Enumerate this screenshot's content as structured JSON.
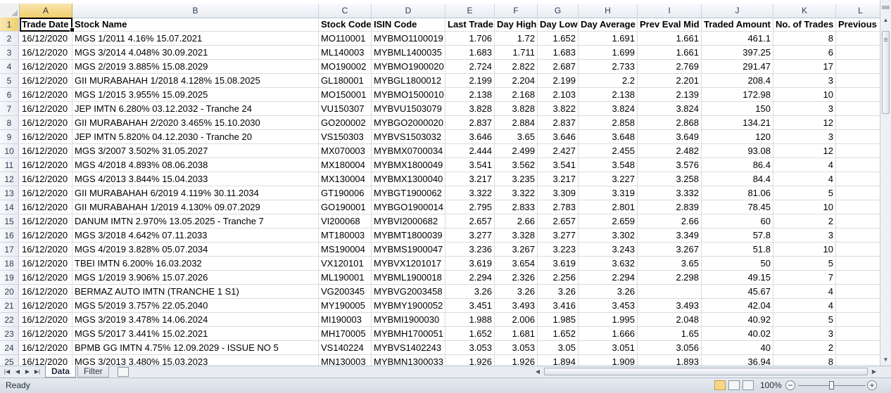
{
  "columns": [
    "A",
    "B",
    "C",
    "D",
    "E",
    "F",
    "G",
    "H",
    "I",
    "J",
    "K",
    "L"
  ],
  "rows": [
    {
      "n": "1",
      "cells": [
        "Trade Date",
        "Stock Name",
        "Stock Code",
        "ISIN Code",
        "Last Trade",
        "Day High",
        "Day Low",
        "Day Average",
        "Prev Eval Mid",
        "Traded Amount",
        "No. of Trades",
        "Previous"
      ]
    },
    {
      "n": "2",
      "cells": [
        "16/12/2020",
        "MGS 1/2011 4.16% 15.07.2021",
        "MO110001",
        "MYBMO1100019",
        "1.706",
        "1.72",
        "1.652",
        "1.691",
        "1.661",
        "461.1",
        "8",
        ""
      ]
    },
    {
      "n": "3",
      "cells": [
        "16/12/2020",
        "MGS 3/2014 4.048% 30.09.2021",
        "ML140003",
        "MYBML1400035",
        "1.683",
        "1.711",
        "1.683",
        "1.699",
        "1.661",
        "397.25",
        "6",
        ""
      ]
    },
    {
      "n": "4",
      "cells": [
        "16/12/2020",
        "MGS 2/2019 3.885% 15.08.2029",
        "MO190002",
        "MYBMO1900020",
        "2.724",
        "2.822",
        "2.687",
        "2.733",
        "2.769",
        "291.47",
        "17",
        ""
      ]
    },
    {
      "n": "5",
      "cells": [
        "16/12/2020",
        "GII MURABAHAH 1/2018 4.128% 15.08.2025",
        "GL180001",
        "MYBGL1800012",
        "2.199",
        "2.204",
        "2.199",
        "2.2",
        "2.201",
        "208.4",
        "3",
        ""
      ]
    },
    {
      "n": "6",
      "cells": [
        "16/12/2020",
        "MGS 1/2015 3.955% 15.09.2025",
        "MO150001",
        "MYBMO1500010",
        "2.138",
        "2.168",
        "2.103",
        "2.138",
        "2.139",
        "172.98",
        "10",
        ""
      ]
    },
    {
      "n": "7",
      "cells": [
        "16/12/2020",
        "JEP IMTN 6.280% 03.12.2032 - Tranche 24",
        "VU150307",
        "MYBVU1503079",
        "3.828",
        "3.828",
        "3.822",
        "3.824",
        "3.824",
        "150",
        "3",
        ""
      ]
    },
    {
      "n": "8",
      "cells": [
        "16/12/2020",
        "GII MURABAHAH 2/2020 3.465% 15.10.2030",
        "GO200002",
        "MYBGO2000020",
        "2.837",
        "2.884",
        "2.837",
        "2.858",
        "2.868",
        "134.21",
        "12",
        ""
      ]
    },
    {
      "n": "9",
      "cells": [
        "16/12/2020",
        "JEP IMTN 5.820% 04.12.2030 - Tranche 20",
        "VS150303",
        "MYBVS1503032",
        "3.646",
        "3.65",
        "3.646",
        "3.648",
        "3.649",
        "120",
        "3",
        ""
      ]
    },
    {
      "n": "10",
      "cells": [
        "16/12/2020",
        "MGS 3/2007 3.502% 31.05.2027",
        "MX070003",
        "MYBMX0700034",
        "2.444",
        "2.499",
        "2.427",
        "2.455",
        "2.482",
        "93.08",
        "12",
        ""
      ]
    },
    {
      "n": "11",
      "cells": [
        "16/12/2020",
        "MGS 4/2018 4.893% 08.06.2038",
        "MX180004",
        "MYBMX1800049",
        "3.541",
        "3.562",
        "3.541",
        "3.548",
        "3.576",
        "86.4",
        "4",
        ""
      ]
    },
    {
      "n": "12",
      "cells": [
        "16/12/2020",
        "MGS 4/2013 3.844% 15.04.2033",
        "MX130004",
        "MYBMX1300040",
        "3.217",
        "3.235",
        "3.217",
        "3.227",
        "3.258",
        "84.4",
        "4",
        ""
      ]
    },
    {
      "n": "13",
      "cells": [
        "16/12/2020",
        "GII MURABAHAH 6/2019 4.119% 30.11.2034",
        "GT190006",
        "MYBGT1900062",
        "3.322",
        "3.322",
        "3.309",
        "3.319",
        "3.332",
        "81.06",
        "5",
        ""
      ]
    },
    {
      "n": "14",
      "cells": [
        "16/12/2020",
        "GII MURABAHAH 1/2019 4.130% 09.07.2029",
        "GO190001",
        "MYBGO1900014",
        "2.795",
        "2.833",
        "2.783",
        "2.801",
        "2.839",
        "78.45",
        "10",
        ""
      ]
    },
    {
      "n": "15",
      "cells": [
        "16/12/2020",
        "DANUM IMTN 2.970% 13.05.2025 - Tranche 7",
        "VI200068",
        "MYBVI2000682",
        "2.657",
        "2.66",
        "2.657",
        "2.659",
        "2.66",
        "60",
        "2",
        ""
      ]
    },
    {
      "n": "16",
      "cells": [
        "16/12/2020",
        "MGS 3/2018 4.642% 07.11.2033",
        "MT180003",
        "MYBMT1800039",
        "3.277",
        "3.328",
        "3.277",
        "3.302",
        "3.349",
        "57.8",
        "3",
        ""
      ]
    },
    {
      "n": "17",
      "cells": [
        "16/12/2020",
        "MGS 4/2019 3.828% 05.07.2034",
        "MS190004",
        "MYBMS1900047",
        "3.236",
        "3.267",
        "3.223",
        "3.243",
        "3.267",
        "51.8",
        "10",
        ""
      ]
    },
    {
      "n": "18",
      "cells": [
        "16/12/2020",
        "TBEI IMTN 6.200% 16.03.2032",
        "VX120101",
        "MYBVX1201017",
        "3.619",
        "3.654",
        "3.619",
        "3.632",
        "3.65",
        "50",
        "5",
        ""
      ]
    },
    {
      "n": "19",
      "cells": [
        "16/12/2020",
        "MGS 1/2019 3.906% 15.07.2026",
        "ML190001",
        "MYBML1900018",
        "2.294",
        "2.326",
        "2.256",
        "2.294",
        "2.298",
        "49.15",
        "7",
        ""
      ]
    },
    {
      "n": "20",
      "cells": [
        "16/12/2020",
        "BERMAZ AUTO IMTN (TRANCHE 1 S1)",
        "VG200345",
        "MYBVG2003458",
        "3.26",
        "3.26",
        "3.26",
        "3.26",
        "",
        "45.67",
        "4",
        ""
      ]
    },
    {
      "n": "21",
      "cells": [
        "16/12/2020",
        "MGS 5/2019 3.757% 22.05.2040",
        "MY190005",
        "MYBMY1900052",
        "3.451",
        "3.493",
        "3.416",
        "3.453",
        "3.493",
        "42.04",
        "4",
        ""
      ]
    },
    {
      "n": "22",
      "cells": [
        "16/12/2020",
        "MGS 3/2019 3.478% 14.06.2024",
        "MI190003",
        "MYBMI1900030",
        "1.988",
        "2.006",
        "1.985",
        "1.995",
        "2.048",
        "40.92",
        "5",
        ""
      ]
    },
    {
      "n": "23",
      "cells": [
        "16/12/2020",
        "MGS 5/2017 3.441% 15.02.2021",
        "MH170005",
        "MYBMH1700051",
        "1.652",
        "1.681",
        "1.652",
        "1.666",
        "1.65",
        "40.02",
        "3",
        ""
      ]
    },
    {
      "n": "24",
      "cells": [
        "16/12/2020",
        "BPMB GG IMTN 4.75% 12.09.2029 - ISSUE NO 5",
        "VS140224",
        "MYBVS1402243",
        "3.053",
        "3.053",
        "3.05",
        "3.051",
        "3.056",
        "40",
        "2",
        ""
      ]
    },
    {
      "n": "25",
      "cells": [
        "16/12/2020",
        "MGS 3/2013 3.480% 15.03.2023",
        "MN130003",
        "MYBMN1300033",
        "1.926",
        "1.926",
        "1.894",
        "1.909",
        "1.893",
        "36.94",
        "8",
        ""
      ]
    }
  ],
  "sheets": [
    {
      "label": "Data",
      "active": true
    },
    {
      "label": "Filter",
      "active": false
    }
  ],
  "status": {
    "ready": "Ready",
    "zoom": "100%"
  },
  "icons": [
    "first-sheet-icon",
    "prev-sheet-icon",
    "next-sheet-icon",
    "last-sheet-icon",
    "insert-sheet-icon",
    "normal-view-icon",
    "page-layout-view-icon",
    "page-break-view-icon",
    "zoom-out-icon",
    "zoom-in-icon"
  ]
}
